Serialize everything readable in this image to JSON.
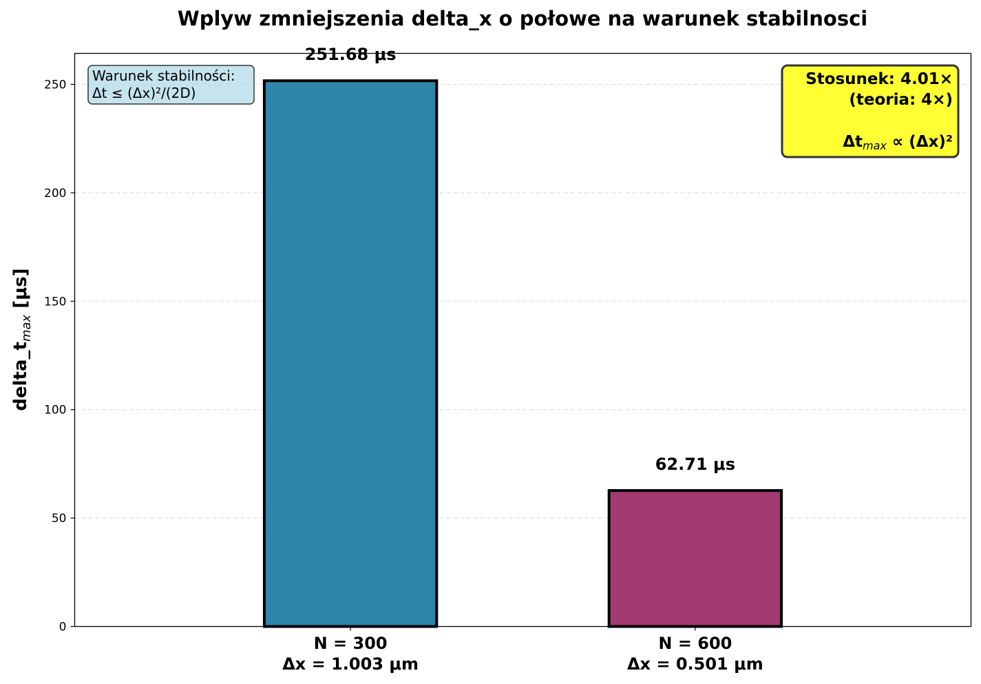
{
  "chart_data": {
    "type": "bar",
    "title": "Wplyw zmniejszenia delta_x o połowe na warunek stabilnosci",
    "ylabel": "delta_t",
    "ylabel_sub": "max",
    "ylabel_unit": " [μs]",
    "xlabel": "",
    "ylim": [
      0,
      264.3
    ],
    "yticks": [
      0,
      50,
      100,
      150,
      200,
      250
    ],
    "grid": "y, dashed",
    "categories": [
      {
        "line1": "N = 300",
        "line2": "Δx = 1.003 μm"
      },
      {
        "line1": "N = 600",
        "line2": "Δx = 0.501 μm"
      }
    ],
    "values": [
      251.68,
      62.71
    ],
    "value_labels": [
      "251.68 μs",
      "62.71 μs"
    ],
    "colors": [
      "#2e86ab",
      "#a23b72"
    ],
    "annotations": {
      "stability_note": {
        "line1": "Warunek stabilności:",
        "line2": "Δt ≤ (Δx)²/(2D)",
        "background": "#add8e6"
      },
      "ratio_box": {
        "line1": "Stosunek: 4.01×",
        "line2": "(teoria: 4×)",
        "line3_main": "Δt",
        "line3_sub": "max",
        "line3_rest": " ∝ (Δx)²",
        "background": "#ffff33"
      }
    }
  }
}
